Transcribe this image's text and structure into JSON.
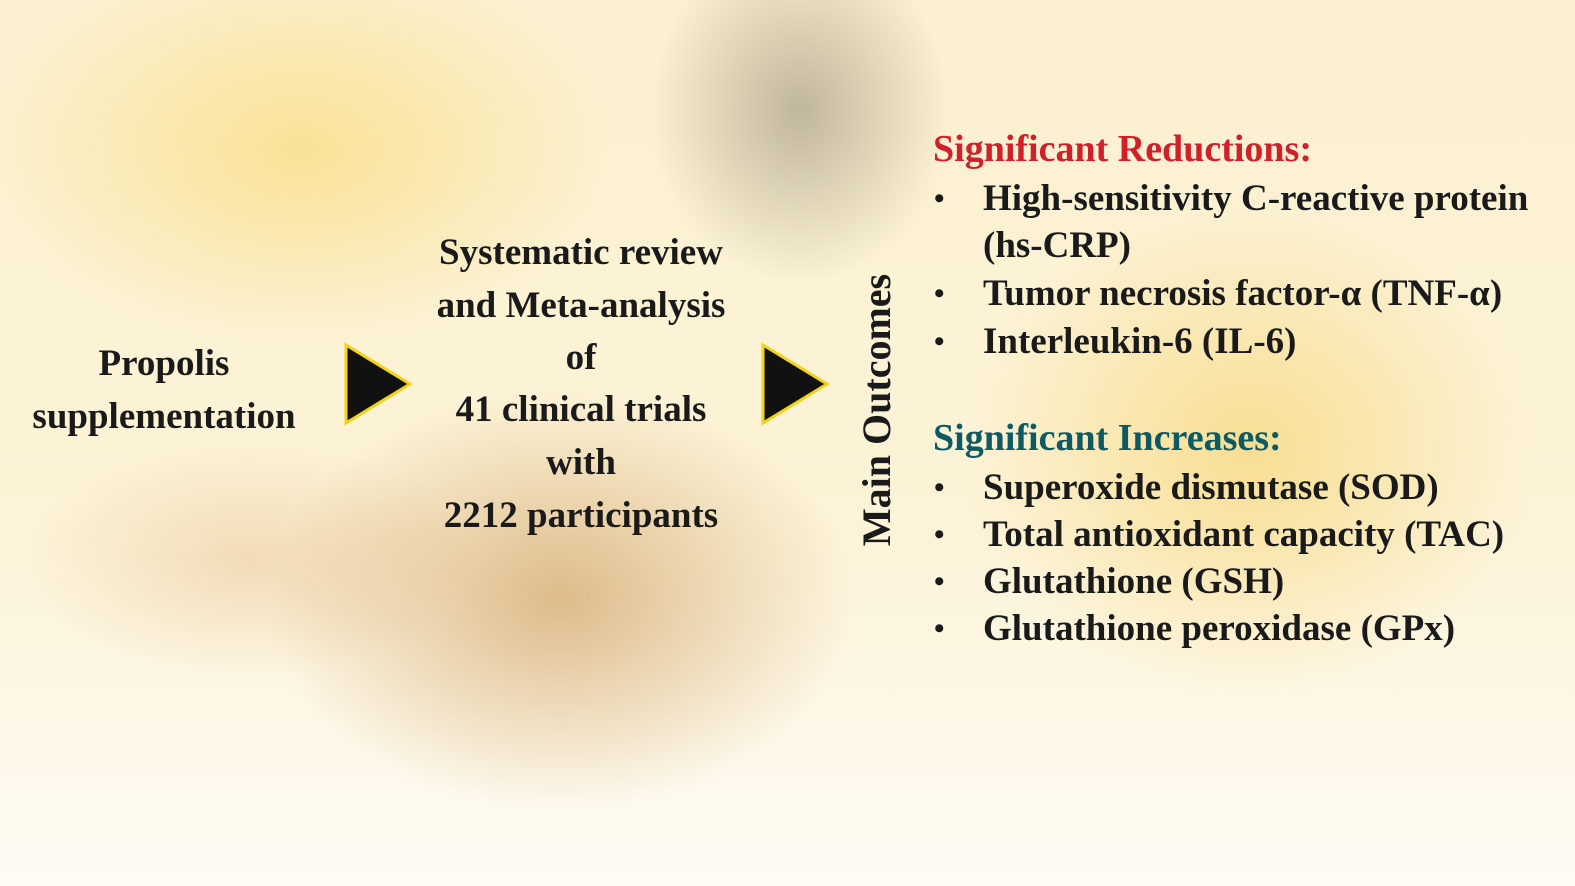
{
  "left": {
    "lines": [
      "Propolis",
      "supplementation"
    ]
  },
  "middle": {
    "lines": [
      "Systematic review",
      "and Meta-analysis",
      "of",
      "41 clinical trials",
      "with",
      "2212 participants"
    ]
  },
  "vertical_label": "Main Outcomes",
  "reductions": {
    "heading": "Significant Reductions:",
    "color": "#d0202a",
    "items": [
      "High-sensitivity C-reactive protein",
      "(hs-CRP)",
      "Tumor necrosis factor-α (TNF-α)",
      "Interleukin-6 (IL-6)"
    ]
  },
  "increases": {
    "heading": "Significant Increases:",
    "color": "#0e5a63",
    "items": [
      "Superoxide dismutase (SOD)",
      "Total antioxidant capacity (TAC)",
      "Glutathione (GSH)",
      "Glutathione peroxidase (GPx)"
    ]
  },
  "arrow_colors": {
    "fill": "#111111",
    "stroke": "#f2d21a"
  }
}
